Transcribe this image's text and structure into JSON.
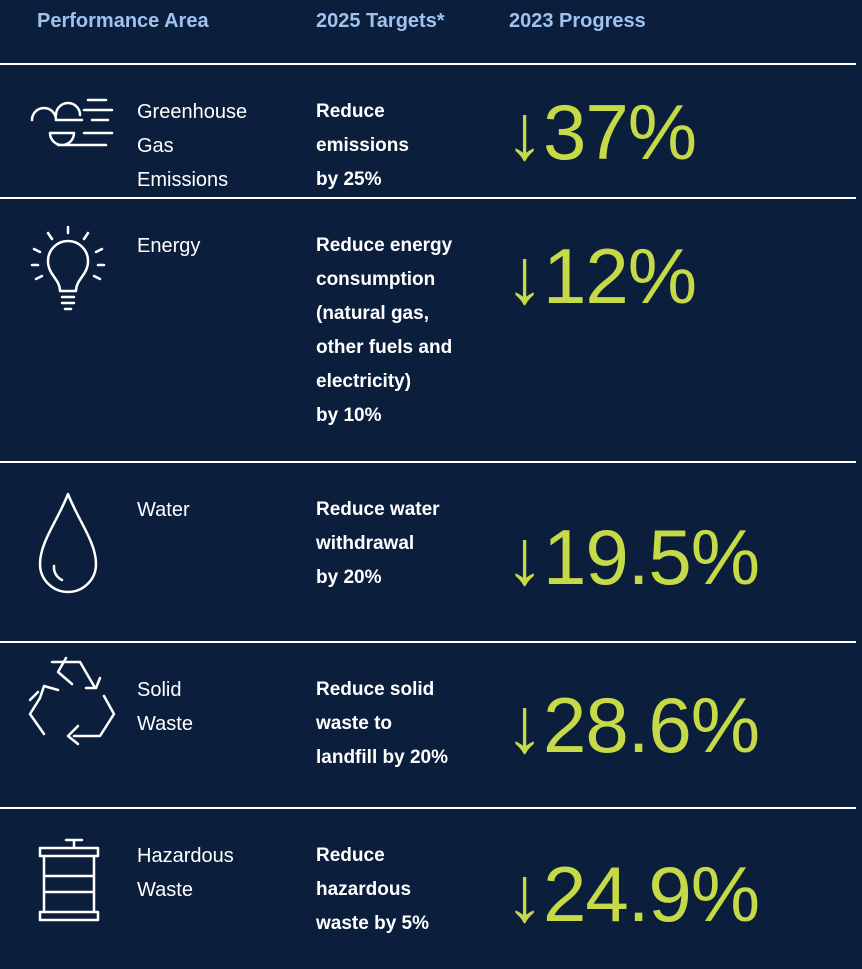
{
  "header": {
    "columns": [
      "Performance Area",
      "2025 Targets*",
      "2023 Progress"
    ]
  },
  "rows": [
    {
      "area": [
        "Greenhouse",
        "Gas",
        "Emissions"
      ],
      "target": [
        "Reduce",
        "emissions",
        "by 25%"
      ],
      "progress": "↓37%"
    },
    {
      "area": [
        "Energy"
      ],
      "target": [
        "Reduce energy",
        "consumption",
        "(natural gas,",
        "other fuels and",
        "electricity)",
        "by 10%"
      ],
      "progress": "↓12%"
    },
    {
      "area": [
        "Water"
      ],
      "target": [
        "Reduce water",
        "withdrawal",
        "by 20%"
      ],
      "progress": "↓19.5%"
    },
    {
      "area": [
        "Solid",
        "Waste"
      ],
      "target": [
        "Reduce solid",
        "waste to",
        "landfill by 20%"
      ],
      "progress": "↓28.6%"
    },
    {
      "area": [
        "Hazardous",
        "Waste"
      ],
      "target": [
        "Reduce",
        "hazardous",
        "waste by 5%"
      ],
      "progress": "↓24.9%"
    }
  ]
}
